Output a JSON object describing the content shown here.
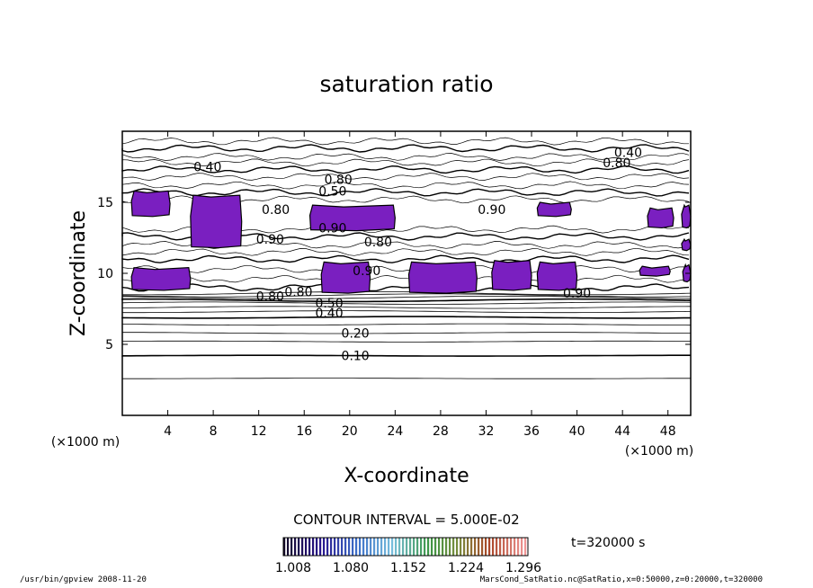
{
  "chart_data": {
    "type": "contour",
    "title": "saturation ratio",
    "xlabel": "X-coordinate",
    "ylabel": "Z-coordinate",
    "x_unit_left": "(×1000 m)",
    "x_unit_right": "(×1000 m)",
    "xlim": [
      0,
      50
    ],
    "ylim": [
      0,
      20
    ],
    "x_ticks": [
      4,
      8,
      12,
      16,
      20,
      24,
      28,
      32,
      36,
      40,
      44,
      48
    ],
    "y_ticks": [
      5,
      10,
      15
    ],
    "contour_interval_text": "CONTOUR INTERVAL = 5.000E-02",
    "time_text": "t=320000 s",
    "colorbar": {
      "tick_labels": [
        "1.008",
        "1.080",
        "1.152",
        "1.224",
        "1.296"
      ],
      "range": [
        1.008,
        1.296
      ]
    },
    "contour_labels": [
      {
        "text": "0.10",
        "x": 20.5,
        "y": 4.2
      },
      {
        "text": "0.20",
        "x": 20.5,
        "y": 5.8
      },
      {
        "text": "0.40",
        "x": 18.2,
        "y": 7.2
      },
      {
        "text": "0.50",
        "x": 18.2,
        "y": 7.9
      },
      {
        "text": "0.80",
        "x": 15.5,
        "y": 8.7
      },
      {
        "text": "0.80",
        "x": 13.0,
        "y": 8.4
      },
      {
        "text": "0.90",
        "x": 21.5,
        "y": 10.2
      },
      {
        "text": "0.90",
        "x": 13.0,
        "y": 12.4
      },
      {
        "text": "0.80",
        "x": 22.5,
        "y": 12.2
      },
      {
        "text": "0.90",
        "x": 18.5,
        "y": 13.2
      },
      {
        "text": "0.90",
        "x": 40.0,
        "y": 8.6
      },
      {
        "text": "0.40",
        "x": 7.5,
        "y": 17.5
      },
      {
        "text": "0.80",
        "x": 19.0,
        "y": 16.6
      },
      {
        "text": "0.50",
        "x": 18.5,
        "y": 15.8
      },
      {
        "text": "0.80",
        "x": 13.5,
        "y": 14.5
      },
      {
        "text": "0.90",
        "x": 32.5,
        "y": 14.5
      },
      {
        "text": "0.40",
        "x": 44.5,
        "y": 18.5
      },
      {
        "text": "0.80",
        "x": 43.5,
        "y": 17.8
      }
    ],
    "supersaturated_regions": [
      {
        "xmin": 0.8,
        "xmax": 4.2,
        "zmin": 14.0,
        "zmax": 15.8
      },
      {
        "xmin": 6.0,
        "xmax": 10.5,
        "zmin": 11.8,
        "zmax": 15.5
      },
      {
        "xmin": 16.5,
        "xmax": 24.0,
        "zmin": 13.0,
        "zmax": 14.8
      },
      {
        "xmin": 36.5,
        "xmax": 39.5,
        "zmin": 14.0,
        "zmax": 15.0
      },
      {
        "xmin": 46.2,
        "xmax": 48.5,
        "zmin": 13.2,
        "zmax": 14.6
      },
      {
        "xmin": 49.2,
        "xmax": 50.0,
        "zmin": 13.2,
        "zmax": 14.8
      },
      {
        "xmin": 0.8,
        "xmax": 6.0,
        "zmin": 8.8,
        "zmax": 10.4
      },
      {
        "xmin": 17.5,
        "xmax": 21.8,
        "zmin": 8.6,
        "zmax": 10.8
      },
      {
        "xmin": 25.2,
        "xmax": 31.2,
        "zmin": 8.6,
        "zmax": 10.8
      },
      {
        "xmin": 32.5,
        "xmax": 36.0,
        "zmin": 8.8,
        "zmax": 10.9
      },
      {
        "xmin": 36.5,
        "xmax": 40.0,
        "zmin": 8.8,
        "zmax": 10.8
      },
      {
        "xmin": 45.5,
        "xmax": 48.2,
        "zmin": 9.8,
        "zmax": 10.5
      },
      {
        "xmin": 49.3,
        "xmax": 50.0,
        "zmin": 9.4,
        "zmax": 10.6
      },
      {
        "xmin": 49.2,
        "xmax": 50.0,
        "zmin": 11.6,
        "zmax": 12.4
      }
    ],
    "region_color": "#7a1fc0",
    "grid": false
  },
  "footer": {
    "left": "/usr/bin/gpview  2008-11-20",
    "right": "MarsCond_SatRatio.nc@SatRatio,x=0:50000,z=0:20000,t=320000"
  }
}
